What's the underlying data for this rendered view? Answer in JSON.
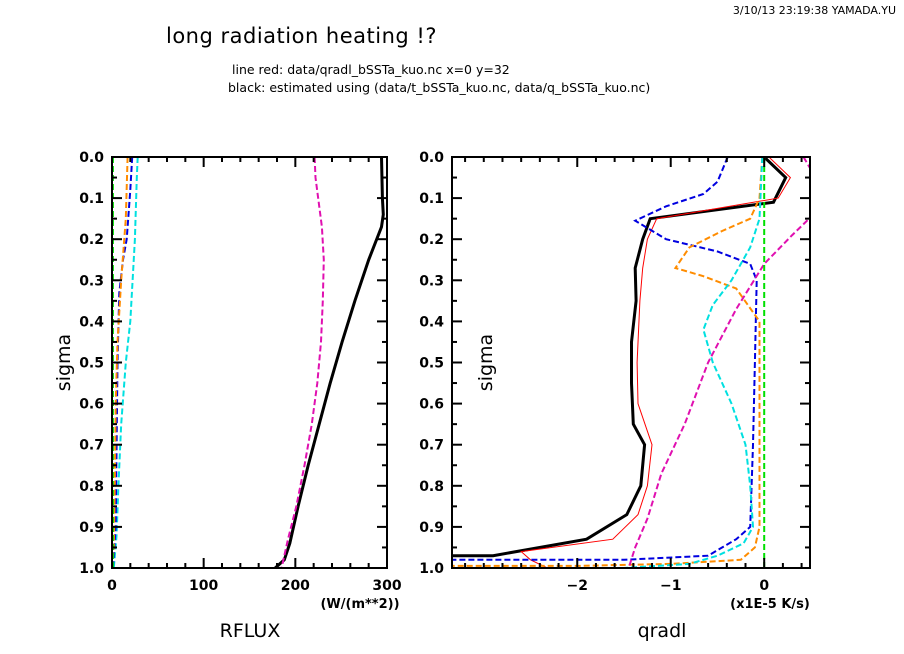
{
  "header": {
    "timestamp": "3/10/13 23:19:38 YAMADA.YU",
    "title": "long radiation heating !?",
    "subtitle_line1": "line red: data/qradl_bSSTa_kuo.nc x=0 y=32",
    "subtitle_line2": "black: estimated using (data/t_bSSTa_kuo.nc, data/q_bSSTa_kuo.nc)"
  },
  "colors": {
    "black": "#000000",
    "red": "#ff0000",
    "magenta": "#e010b0",
    "blue": "#0000e0",
    "orange": "#ff8c00",
    "cyan": "#00e0e0",
    "green": "#00e000"
  },
  "chart_data": [
    {
      "type": "line",
      "name": "RFLUX",
      "title": "",
      "xlabel": "RFLUX",
      "xunits": "(W/(m**2))",
      "ylabel": "sigma",
      "xlim": [
        0,
        300
      ],
      "ylim": [
        1.0,
        0.0
      ],
      "xticks": [
        "0",
        "100",
        "200",
        "300"
      ],
      "yticks": [
        "0.0",
        "0.1",
        "0.2",
        "0.3",
        "0.4",
        "0.5",
        "0.6",
        "0.7",
        "0.8",
        "0.9",
        "1.0"
      ],
      "series": [
        {
          "name": "black-solid",
          "color": "black",
          "style": "solid",
          "width": 3,
          "points": [
            [
              294,
              0.0
            ],
            [
              295,
              0.1
            ],
            [
              296,
              0.14
            ],
            [
              294,
              0.17
            ],
            [
              280,
              0.25
            ],
            [
              265,
              0.35
            ],
            [
              251,
              0.45
            ],
            [
              238,
              0.55
            ],
            [
              226,
              0.65
            ],
            [
              214,
              0.75
            ],
            [
              203,
              0.85
            ],
            [
              194,
              0.94
            ],
            [
              188,
              0.98
            ],
            [
              178,
              1.0
            ]
          ]
        },
        {
          "name": "magenta-dashed",
          "color": "magenta",
          "style": "dashed",
          "width": 2,
          "points": [
            [
              221,
              0.0
            ],
            [
              222,
              0.05
            ],
            [
              229,
              0.17
            ],
            [
              231,
              0.25
            ],
            [
              230,
              0.35
            ],
            [
              228,
              0.45
            ],
            [
              224,
              0.55
            ],
            [
              218,
              0.65
            ],
            [
              210,
              0.75
            ],
            [
              201,
              0.85
            ],
            [
              192,
              0.93
            ],
            [
              187,
              0.98
            ],
            [
              185,
              1.0
            ]
          ]
        },
        {
          "name": "cyan-dashed",
          "color": "cyan",
          "style": "dashed",
          "width": 2,
          "points": [
            [
              28,
              0.0
            ],
            [
              27,
              0.05
            ],
            [
              25,
              0.2
            ],
            [
              20,
              0.4
            ],
            [
              15,
              0.5
            ],
            [
              10,
              0.65
            ],
            [
              7,
              0.8
            ],
            [
              5,
              0.92
            ],
            [
              2,
              1.0
            ]
          ]
        },
        {
          "name": "blue-dashed",
          "color": "blue",
          "style": "dashed",
          "width": 2,
          "points": [
            [
              22,
              0.0
            ],
            [
              20,
              0.08
            ],
            [
              16,
              0.2
            ],
            [
              12,
              0.25
            ],
            [
              8,
              0.33
            ],
            [
              6,
              0.5
            ],
            [
              5,
              0.7
            ],
            [
              4,
              0.9
            ],
            [
              1,
              1.0
            ]
          ]
        },
        {
          "name": "orange-dashed",
          "color": "orange",
          "style": "dashed",
          "width": 2,
          "points": [
            [
              17,
              0.0
            ],
            [
              15,
              0.15
            ],
            [
              10,
              0.3
            ],
            [
              6,
              0.45
            ],
            [
              4,
              0.6
            ],
            [
              3,
              0.8
            ],
            [
              2,
              0.95
            ],
            [
              0,
              1.0
            ]
          ]
        },
        {
          "name": "black-dashed",
          "color": "black",
          "style": "dashed",
          "width": 1.5,
          "points": [
            [
              0,
              0.0
            ],
            [
              0,
              1.0
            ]
          ]
        },
        {
          "name": "green-dashed",
          "color": "green",
          "style": "dashed",
          "width": 2,
          "points": [
            [
              1,
              0.0
            ],
            [
              1,
              1.0
            ]
          ]
        }
      ]
    },
    {
      "type": "line",
      "name": "qradl",
      "title": "",
      "xlabel": "qradl",
      "xunits": "(x1E-5 K/s)",
      "ylabel": "sigma",
      "xlim": [
        -3.34,
        0.49
      ],
      "ylim": [
        1.0,
        0.0
      ],
      "xticks": [
        "−2",
        "−1",
        "0"
      ],
      "yticks": [
        "0.0",
        "0.1",
        "0.2",
        "0.3",
        "0.4",
        "0.5",
        "0.6",
        "0.7",
        "0.8",
        "0.9",
        "1.0"
      ],
      "series": [
        {
          "name": "black-solid",
          "color": "black",
          "style": "solid",
          "width": 3,
          "points": [
            [
              0.0,
              0.0
            ],
            [
              0.23,
              0.05
            ],
            [
              0.1,
              0.11
            ],
            [
              -1.22,
              0.15
            ],
            [
              -1.3,
              0.2
            ],
            [
              -1.38,
              0.27
            ],
            [
              -1.37,
              0.35
            ],
            [
              -1.42,
              0.45
            ],
            [
              -1.42,
              0.55
            ],
            [
              -1.4,
              0.65
            ],
            [
              -1.28,
              0.7
            ],
            [
              -1.32,
              0.8
            ],
            [
              -1.47,
              0.87
            ],
            [
              -1.9,
              0.93
            ],
            [
              -2.9,
              0.97
            ],
            [
              -3.34,
              0.97
            ]
          ]
        },
        {
          "name": "red-solid",
          "color": "red",
          "style": "solid",
          "width": 1,
          "points": [
            [
              0.05,
              0.0
            ],
            [
              0.28,
              0.05
            ],
            [
              0.15,
              0.1
            ],
            [
              -1.15,
              0.15
            ],
            [
              -1.25,
              0.2
            ],
            [
              -1.3,
              0.27
            ],
            [
              -1.33,
              0.35
            ],
            [
              -1.36,
              0.5
            ],
            [
              -1.35,
              0.6
            ],
            [
              -1.2,
              0.7
            ],
            [
              -1.25,
              0.8
            ],
            [
              -1.35,
              0.87
            ],
            [
              -1.62,
              0.93
            ],
            [
              -2.6,
              0.96
            ],
            [
              -2.5,
              0.98
            ],
            [
              -2.32,
              1.0
            ]
          ]
        },
        {
          "name": "blue-dashed",
          "color": "blue",
          "style": "dashed",
          "width": 2,
          "points": [
            [
              -0.39,
              0.0
            ],
            [
              -0.5,
              0.06
            ],
            [
              -0.65,
              0.09
            ],
            [
              -1.05,
              0.12
            ],
            [
              -1.38,
              0.155
            ],
            [
              -1.05,
              0.2
            ],
            [
              -0.5,
              0.23
            ],
            [
              -0.15,
              0.26
            ],
            [
              -0.08,
              0.3
            ],
            [
              -0.1,
              0.5
            ],
            [
              -0.12,
              0.7
            ],
            [
              -0.15,
              0.9
            ],
            [
              -0.3,
              0.93
            ],
            [
              -0.6,
              0.97
            ],
            [
              -1.5,
              0.98
            ],
            [
              -3.34,
              0.98
            ]
          ]
        },
        {
          "name": "orange-dashed",
          "color": "orange",
          "style": "dashed",
          "width": 2,
          "points": [
            [
              -0.02,
              0.0
            ],
            [
              -0.05,
              0.1
            ],
            [
              -0.15,
              0.15
            ],
            [
              -0.45,
              0.18
            ],
            [
              -0.8,
              0.22
            ],
            [
              -0.95,
              0.27
            ],
            [
              -0.65,
              0.29
            ],
            [
              -0.3,
              0.32
            ],
            [
              -0.05,
              0.4
            ],
            [
              -0.05,
              0.7
            ],
            [
              -0.05,
              0.9
            ],
            [
              -0.1,
              0.95
            ],
            [
              -0.25,
              0.98
            ],
            [
              -1.0,
              0.99
            ],
            [
              -2.0,
              0.995
            ],
            [
              -3.34,
              0.995
            ]
          ]
        },
        {
          "name": "cyan-dashed",
          "color": "cyan",
          "style": "dashed",
          "width": 2,
          "points": [
            [
              -0.02,
              0.0
            ],
            [
              -0.05,
              0.15
            ],
            [
              -0.15,
              0.22
            ],
            [
              -0.35,
              0.3
            ],
            [
              -0.55,
              0.36
            ],
            [
              -0.65,
              0.42
            ],
            [
              -0.55,
              0.5
            ],
            [
              -0.35,
              0.6
            ],
            [
              -0.2,
              0.7
            ],
            [
              -0.15,
              0.8
            ],
            [
              -0.12,
              0.9
            ],
            [
              -0.22,
              0.94
            ],
            [
              -0.5,
              0.97
            ],
            [
              -0.8,
              0.99
            ],
            [
              -1.5,
              1.0
            ],
            [
              -3.34,
              1.0
            ]
          ]
        },
        {
          "name": "magenta-dashed",
          "color": "magenta",
          "style": "dashed",
          "width": 2,
          "points": [
            [
              0.42,
              0.0
            ],
            [
              0.55,
              0.05
            ],
            [
              0.62,
              0.1
            ],
            [
              0.48,
              0.15
            ],
            [
              0.3,
              0.19
            ],
            [
              0.0,
              0.26
            ],
            [
              -0.3,
              0.37
            ],
            [
              -0.6,
              0.5
            ],
            [
              -0.85,
              0.65
            ],
            [
              -1.1,
              0.77
            ],
            [
              -1.25,
              0.88
            ],
            [
              -1.38,
              0.95
            ],
            [
              -1.45,
              1.0
            ]
          ]
        },
        {
          "name": "green-dashed",
          "color": "green",
          "style": "dashed",
          "width": 2,
          "points": [
            [
              0.0,
              0.0
            ],
            [
              0.0,
              1.0
            ]
          ]
        }
      ]
    }
  ]
}
